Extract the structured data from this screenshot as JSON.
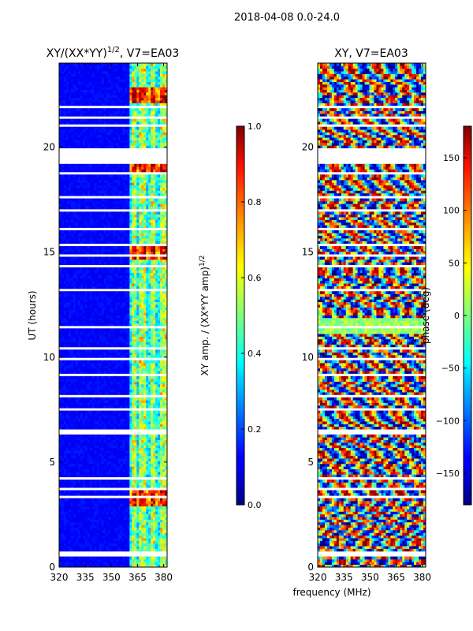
{
  "suptitle": "2018-04-08 0.0-24.0",
  "xlabel_shared": "frequency (MHz)",
  "chart_data": [
    {
      "type": "heatmap",
      "title": "XY/(XX*YY)",
      "title_sup": "1/2",
      "title_tail": ", V7=EA03",
      "quantity": "normalized XY amplitude",
      "x_range": [
        320,
        382
      ],
      "y_range": [
        0,
        24
      ],
      "ylabel": "UT (hours)",
      "xticks": [
        320,
        335,
        350,
        365,
        380
      ],
      "yticks": [
        0,
        5,
        10,
        15,
        20
      ],
      "flagged_hours": [
        [
          19.2,
          20.0
        ]
      ],
      "bright_channels": [
        363,
        368,
        374,
        380
      ],
      "hot_hours": [
        3.3,
        15.0,
        19.2,
        22.5
      ],
      "colorbar": {
        "label": "XY amp. / (XX*YY amp)",
        "label_sup": "1/2",
        "range": [
          0.0,
          1.0
        ],
        "ticks": [
          "0.0",
          "0.2",
          "0.4",
          "0.6",
          "0.8",
          "1.0"
        ]
      }
    },
    {
      "type": "heatmap",
      "title": "XY, V7=EA03",
      "quantity": "XY phase",
      "x_range": [
        320,
        382
      ],
      "y_range": [
        0,
        24
      ],
      "xticks": [
        320,
        335,
        350,
        365,
        380
      ],
      "yticks": [
        0,
        5,
        10,
        15,
        20
      ],
      "flagged_hours": [
        [
          19.2,
          20.0
        ],
        [
          11.1,
          11.9
        ]
      ],
      "colorbar": {
        "label": "phase (deg)",
        "range": [
          -180,
          180
        ],
        "ticks": [
          "−150",
          "−100",
          "−50",
          "0",
          "50",
          "100",
          "150"
        ]
      }
    }
  ]
}
